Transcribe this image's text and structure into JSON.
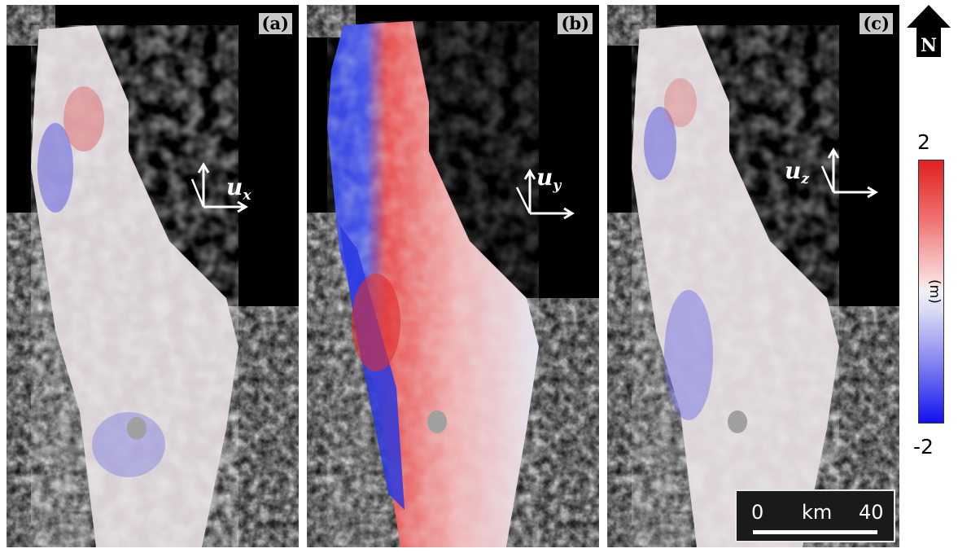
{
  "panels": [
    {
      "label": "(a)",
      "component": "u",
      "subscript": "x"
    },
    {
      "label": "(b)",
      "component": "u",
      "subscript": "y"
    },
    {
      "label": "(c)",
      "component": "u",
      "subscript": "z"
    }
  ],
  "north_arrow": {
    "label": "N"
  },
  "colorbar": {
    "max": "2",
    "min": "-2",
    "unit": "(m)",
    "colors": [
      "#e02020",
      "#f2f2f8",
      "#1010f0"
    ]
  },
  "scale_bar": {
    "start": "0",
    "unit": "km",
    "end": "40"
  }
}
